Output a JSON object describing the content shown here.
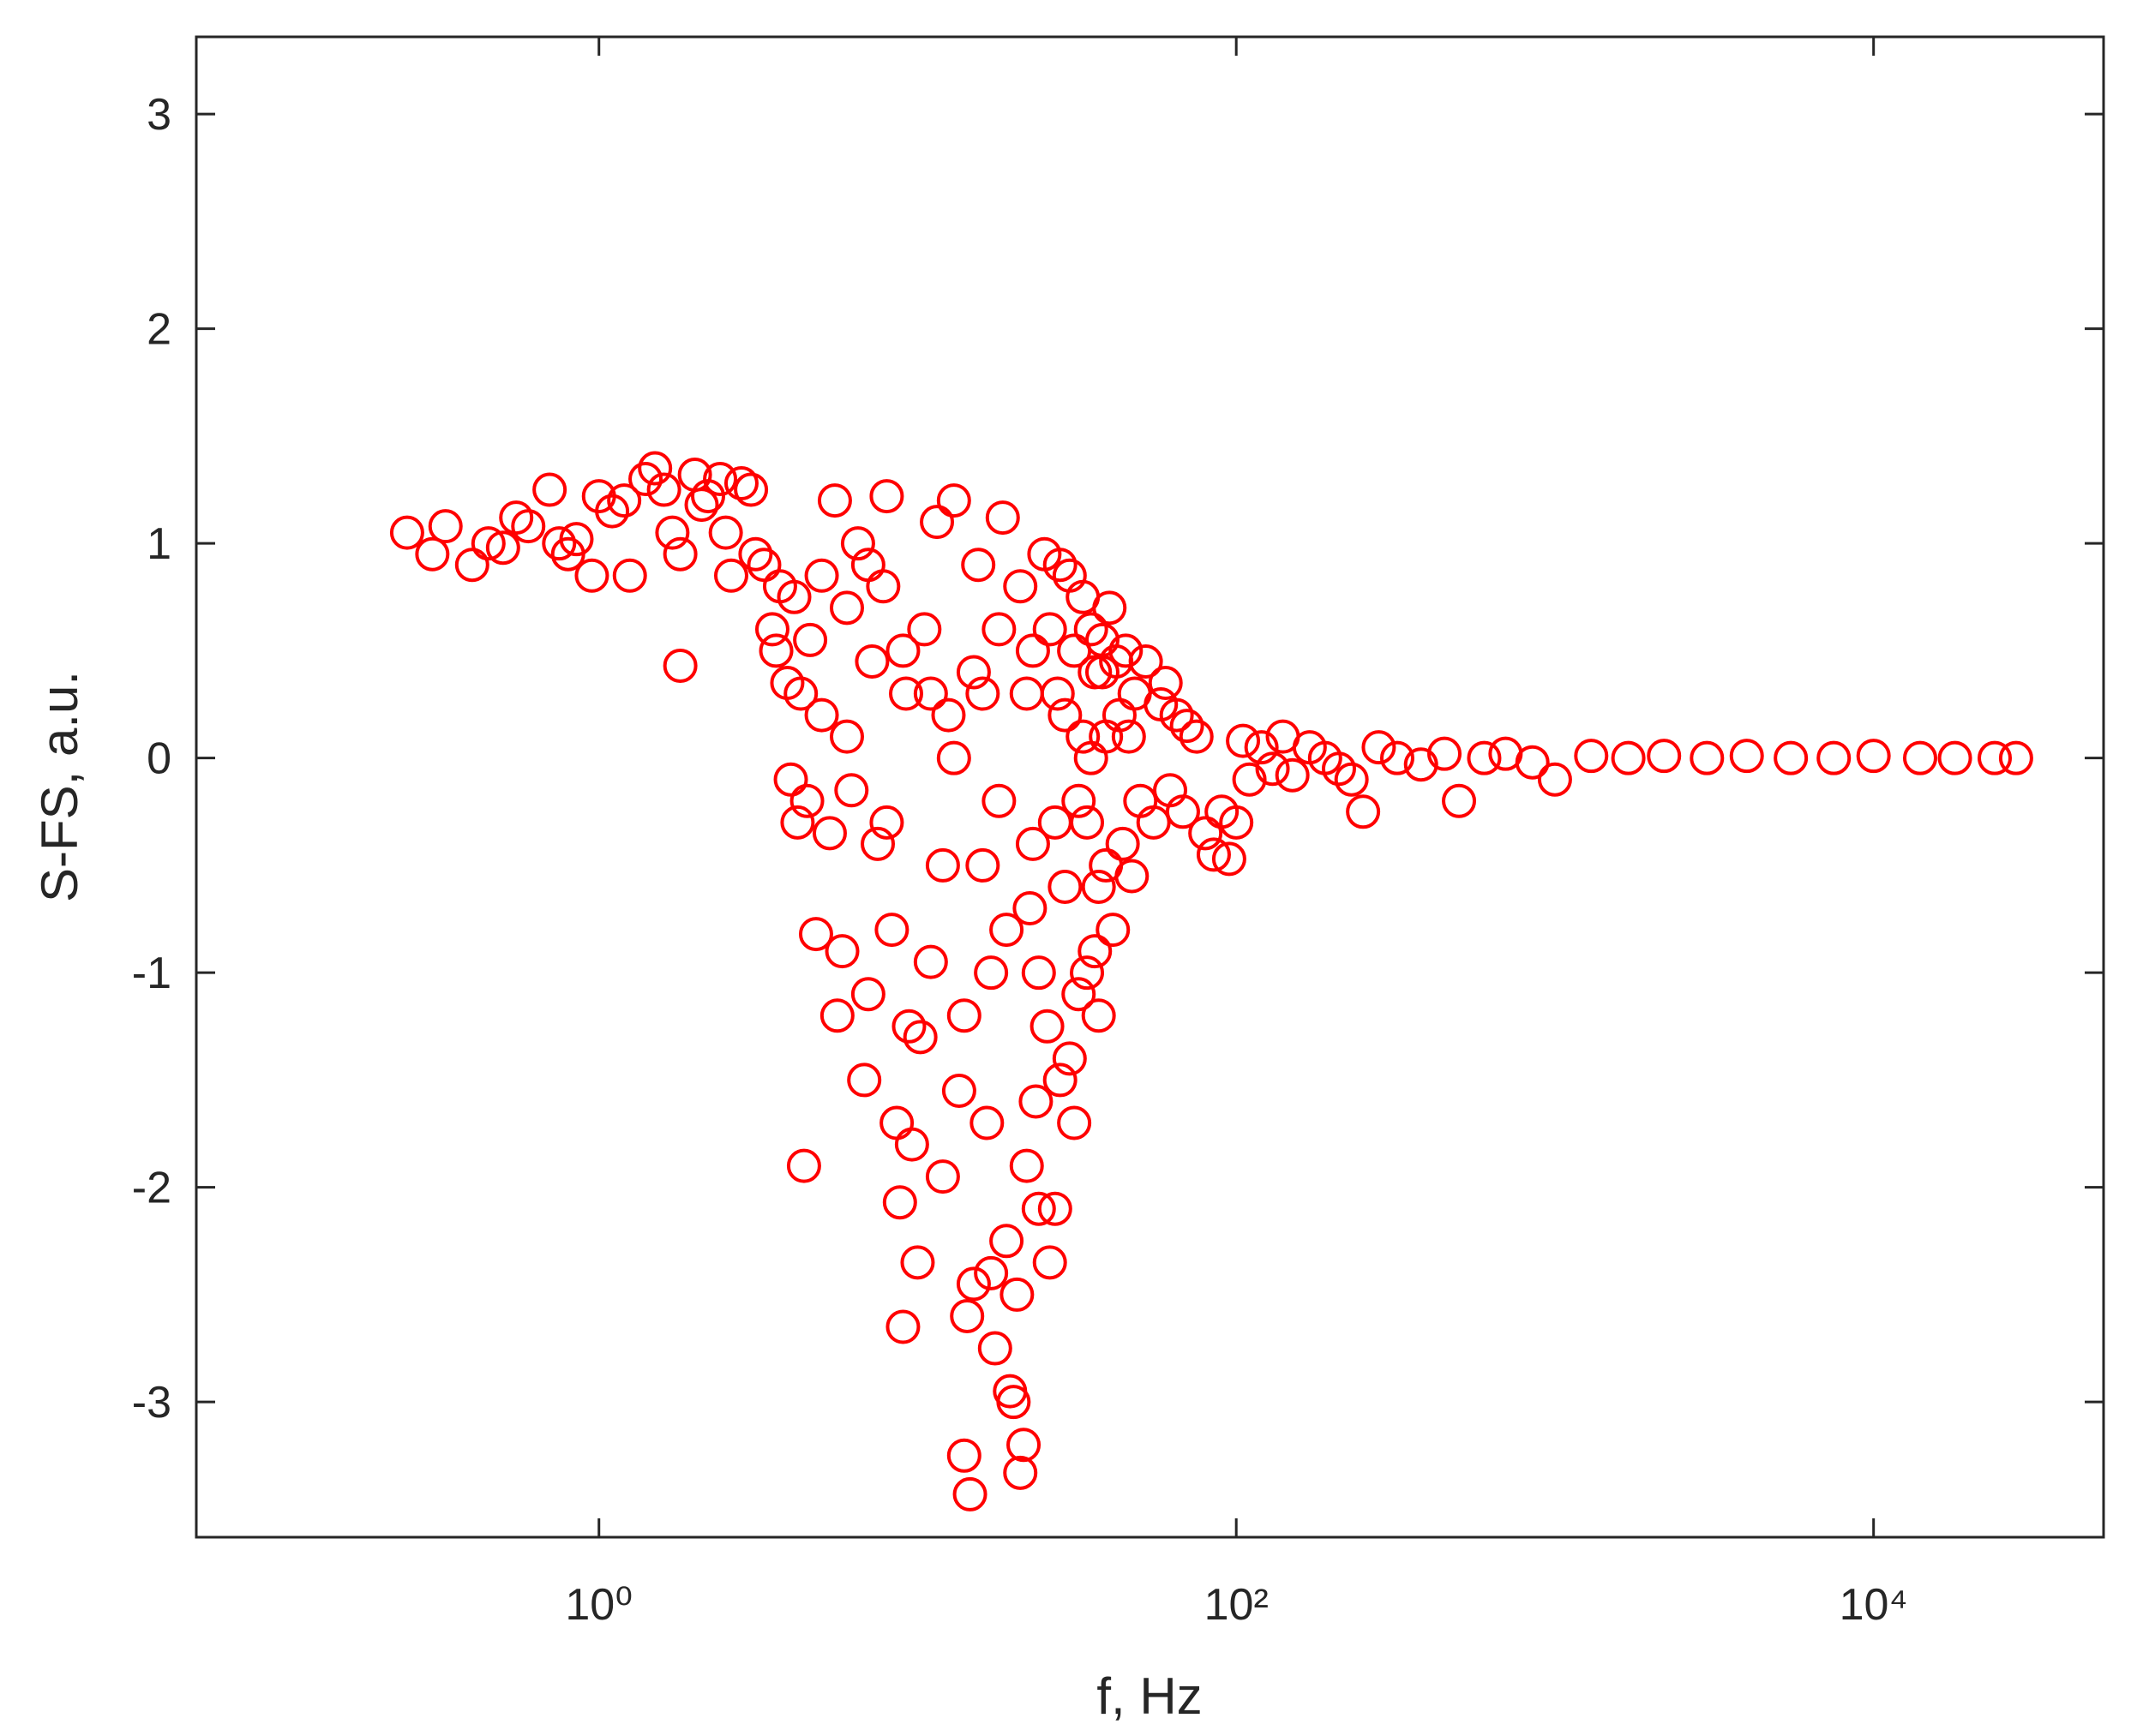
{
  "chart_data": {
    "type": "scatter",
    "x_label": "f, Hz",
    "y_label": "S-FS, a.u.",
    "xscale": "log",
    "xlim": [
      0.0545,
      52700
    ],
    "ylim": [
      -3.63,
      3.36
    ],
    "xticks": [
      {
        "value": 1,
        "label": "10⁰"
      },
      {
        "value": 100,
        "label": "10²"
      },
      {
        "value": 10000,
        "label": "10⁴"
      }
    ],
    "yticks": [
      -3,
      -2,
      -1,
      0,
      1,
      2,
      3
    ],
    "x": [
      0.25,
      0.3,
      0.33,
      0.4,
      0.45,
      0.5,
      0.55,
      0.6,
      0.7,
      0.75,
      0.8,
      0.85,
      0.95,
      1.0,
      1.1,
      1.2,
      1.25,
      1.4,
      1.5,
      1.6,
      1.7,
      1.8,
      1.8,
      2.0,
      2.1,
      2.2,
      2.4,
      2.5,
      2.6,
      2.8,
      3.0,
      3.1,
      3.3,
      3.5,
      3.6,
      3.7,
      3.9,
      4.0,
      4.1,
      4.2,
      4.4,
      4.6,
      4.8,
      5.0,
      5.3,
      5.5,
      5.6,
      5.8,
      6.0,
      6.2,
      6.5,
      6.8,
      7.0,
      7.2,
      7.5,
      7.8,
      8.0,
      8.3,
      8.6,
      8.8,
      9.0,
      9.2,
      9.4,
      9.6,
      10,
      10.2,
      10.5,
      11,
      11.5,
      12,
      12.5,
      13,
      13.5,
      14,
      14.3,
      14.6,
      15,
      15.5,
      16,
      16.5,
      17,
      17.5,
      18,
      18.5,
      19,
      19.5,
      20,
      20.5,
      21,
      21.5,
      22,
      22.5,
      23,
      23.5,
      24,
      25,
      25.5,
      26,
      27,
      27.5,
      28,
      29,
      30,
      31,
      32,
      33,
      34,
      35,
      36,
      37,
      38,
      39,
      40,
      41,
      43,
      44,
      45,
      47,
      48,
      50,
      52,
      55,
      58,
      60,
      62,
      65,
      68,
      70,
      75,
      80,
      85,
      90,
      95,
      100,
      105,
      110,
      120,
      130,
      140,
      150,
      170,
      190,
      210,
      230,
      250,
      280,
      320,
      380,
      450,
      500,
      600,
      700,
      850,
      1000,
      1300,
      1700,
      2200,
      3000,
      4000,
      5500,
      7500,
      10000,
      14000,
      18000,
      24000,
      28000,
      21,
      22,
      23,
      24,
      26,
      27,
      28,
      29,
      30,
      31,
      32,
      33,
      34,
      35,
      36,
      37,
      38,
      39,
      42,
      46,
      16,
      17,
      18,
      19,
      12,
      13,
      14,
      15,
      6,
      7,
      9,
      11,
      8,
      5,
      4.5,
      4.3
    ],
    "series": [
      {
        "color": "#ff0000",
        "values": [
          1.05,
          0.95,
          1.08,
          0.9,
          1.0,
          0.98,
          1.12,
          1.08,
          1.25,
          1.0,
          0.95,
          1.02,
          0.85,
          1.22,
          1.15,
          1.2,
          0.85,
          1.3,
          1.35,
          1.25,
          1.05,
          0.43,
          0.95,
          1.32,
          1.18,
          1.22,
          1.3,
          1.05,
          0.85,
          1.28,
          1.25,
          0.95,
          0.9,
          0.6,
          0.5,
          0.8,
          0.35,
          -0.1,
          0.75,
          -0.3,
          -1.9,
          0.55,
          -0.82,
          0.2,
          -0.35,
          1.2,
          -1.2,
          -0.9,
          0.1,
          -0.15,
          1.0,
          -1.5,
          -1.1,
          0.45,
          -0.4,
          0.8,
          1.22,
          -0.8,
          -1.7,
          -2.07,
          -2.65,
          0.3,
          -1.25,
          -1.8,
          -2.35,
          -1.3,
          0.6,
          -0.95,
          1.1,
          -1.95,
          0.2,
          1.2,
          -1.55,
          -3.25,
          -2.6,
          -3.43,
          -2.45,
          0.9,
          -0.5,
          -1.7,
          -2.4,
          -2.75,
          -0.2,
          1.12,
          -2.25,
          -2.95,
          -3.0,
          -2.5,
          -3.33,
          -3.2,
          -1.9,
          -0.7,
          0.5,
          -1.6,
          -2.1,
          0.95,
          -1.25,
          -2.35,
          -2.1,
          0.3,
          -1.5,
          -0.6,
          0.85,
          -1.7,
          -1.1,
          0.1,
          -0.3,
          0.6,
          -0.9,
          -1.2,
          0.4,
          -0.5,
          0.7,
          -0.8,
          0.2,
          -0.4,
          0.5,
          -0.55,
          0.3,
          -0.2,
          0.45,
          -0.3,
          0.25,
          0.35,
          -0.15,
          0.2,
          -0.25,
          0.15,
          0.1,
          -0.35,
          -0.45,
          -0.25,
          -0.47,
          -0.3,
          0.08,
          -0.1,
          0.05,
          -0.05,
          0.1,
          -0.08,
          0.05,
          0.0,
          -0.05,
          -0.1,
          -0.25,
          0.05,
          0.0,
          -0.03,
          0.02,
          -0.2,
          0.0,
          0.02,
          -0.02,
          -0.1,
          0.01,
          0.0,
          0.01,
          0.0,
          0.01,
          0.0,
          0.0,
          0.01,
          0.0,
          0.0,
          0.0,
          0.0,
          0.8,
          0.3,
          -0.4,
          -1.0,
          0.6,
          -0.3,
          0.9,
          0.2,
          -1.4,
          0.5,
          -0.2,
          0.75,
          -1.0,
          0.0,
          0.4,
          -0.6,
          0.55,
          0.1,
          0.45,
          0.1,
          0.3,
          -1.0,
          0.6,
          -0.8,
          -0.5,
          0.0,
          -1.2,
          0.4,
          0.7,
          0.9,
          0.5,
          0.3,
          -0.3,
          0.85,
          -0.2,
          0.3
        ]
      }
    ]
  }
}
